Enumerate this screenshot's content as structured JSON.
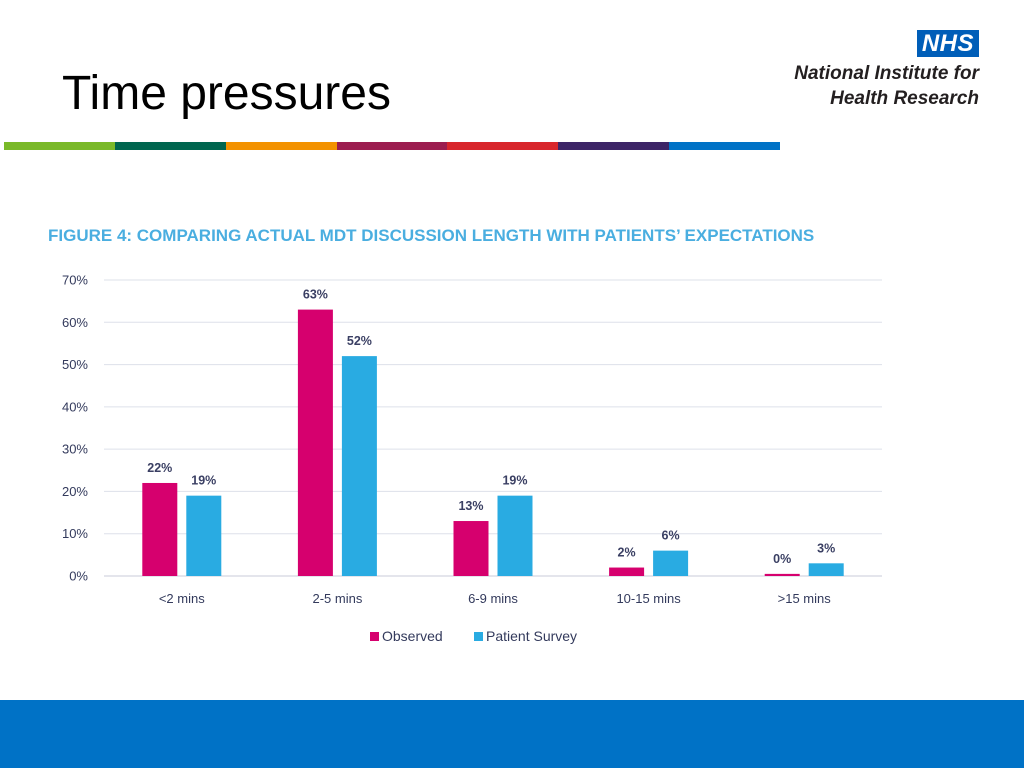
{
  "slide": {
    "title": "Time pressures"
  },
  "logo": {
    "badge": "NHS",
    "line1": "National Institute for",
    "line2": "Health Research",
    "color": "#005eb8"
  },
  "stripe_colors": [
    "#7ab929",
    "#00664f",
    "#f39200",
    "#9c1d4f",
    "#d8262c",
    "#3d2567",
    "#0072c6"
  ],
  "footer_color": "#0072c6",
  "chart_data": {
    "type": "bar",
    "title": "FIGURE 4: COMPARING ACTUAL MDT DISCUSSION LENGTH WITH PATIENTS’ EXPECTATIONS",
    "categories": [
      "<2 mins",
      "2-5 mins",
      "6-9 mins",
      "10-15 mins",
      ">15 mins"
    ],
    "series": [
      {
        "name": "Observed",
        "color": "#d6006e",
        "values": [
          22,
          63,
          13,
          2,
          0.5
        ],
        "labels": [
          "22%",
          "63%",
          "13%",
          "2%",
          "0%"
        ]
      },
      {
        "name": "Patient Survey",
        "color": "#29abe2",
        "values": [
          19,
          52,
          19,
          6,
          3
        ],
        "labels": [
          "19%",
          "52%",
          "19%",
          "6%",
          "3%"
        ]
      }
    ],
    "yticks": [
      "0%",
      "10%",
      "20%",
      "30%",
      "40%",
      "50%",
      "60%",
      "70%"
    ],
    "ylim": [
      0,
      70
    ],
    "grid": true,
    "legend": "bottom-center"
  }
}
